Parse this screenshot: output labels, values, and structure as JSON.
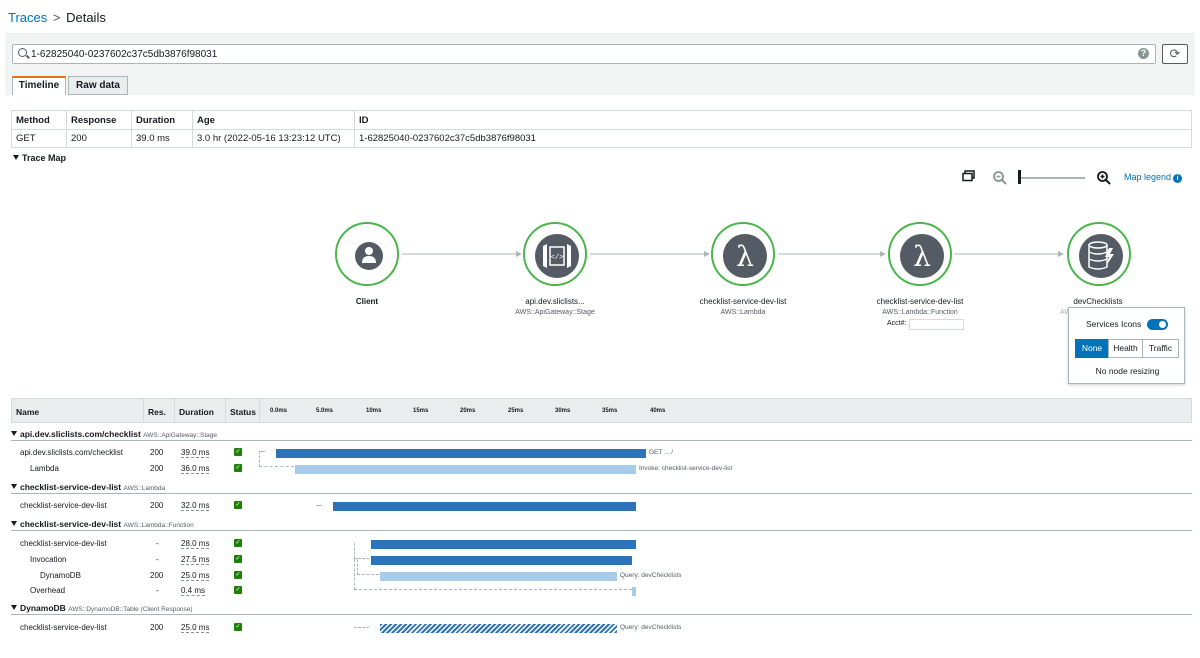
{
  "breadcrumb": {
    "root": "Traces",
    "sep": ">",
    "current": "Details"
  },
  "search": {
    "value": "1-62825040-0237602c37c5db3876f98031",
    "help": "?"
  },
  "tabs": {
    "timeline": "Timeline",
    "raw": "Raw data"
  },
  "summary": {
    "headers": [
      "Method",
      "Response",
      "Duration",
      "Age",
      "ID"
    ],
    "values": [
      "GET",
      "200",
      "39.0 ms",
      "3.0 hr (2022-05-16 13:23:12 UTC)",
      "1-62825040-0237602c37c5db3876f98031"
    ]
  },
  "trace_map": {
    "title": "Trace Map",
    "legend_link": "Map legend",
    "nodes": [
      {
        "name": "Client",
        "type": ""
      },
      {
        "name": "api.dev.sliclists...",
        "type": "AWS::ApiGateway::Stage"
      },
      {
        "name": "checklist-service-dev-list",
        "type": "AWS::Lambda"
      },
      {
        "name": "checklist-service-dev-list",
        "type": "AWS::Lambda::Function",
        "extra": "Acct#:"
      },
      {
        "name": "devChecklists",
        "type": "AWS::DynamoDB::Table"
      }
    ],
    "popup": {
      "services_icons": "Services Icons",
      "modes": [
        "None",
        "Health",
        "Traffic"
      ],
      "selected": "None",
      "resizing": "No node resizing"
    }
  },
  "timeline": {
    "headers": {
      "name": "Name",
      "res": "Res.",
      "duration": "Duration",
      "status": "Status"
    },
    "ticks": [
      "0.0ms",
      "5.0ms",
      "10ms",
      "15ms",
      "20ms",
      "25ms",
      "30ms",
      "35ms",
      "40ms"
    ],
    "groups": [
      {
        "name": "api.dev.sliclists.com/checklist",
        "type": "AWS::ApiGateway::Stage",
        "rows": [
          {
            "name": "api.dev.sliclists.com/checklist",
            "res": "200",
            "dur": "39.0 ms",
            "label": "GET ... /"
          },
          {
            "name": "Lambda",
            "res": "200",
            "dur": "36.0 ms",
            "label": "Invoke: checklist-service-dev-list"
          }
        ]
      },
      {
        "name": "checklist-service-dev-list",
        "type": "AWS::Lambda",
        "rows": [
          {
            "name": "checklist-service-dev-list",
            "res": "200",
            "dur": "32.0 ms",
            "label": ""
          }
        ]
      },
      {
        "name": "checklist-service-dev-list",
        "type": "AWS::Lambda::Function",
        "rows": [
          {
            "name": "checklist-service-dev-list",
            "res": "-",
            "dur": "28.0 ms",
            "label": ""
          },
          {
            "name": "Invocation",
            "res": "-",
            "dur": "27.5 ms",
            "label": ""
          },
          {
            "name": "DynamoDB",
            "res": "200",
            "dur": "25.0 ms",
            "label": "Query: devChecklists"
          },
          {
            "name": "Overhead",
            "res": "-",
            "dur": "0.4 ms",
            "label": ""
          }
        ]
      },
      {
        "name": "DynamoDB",
        "type": "AWS::DynamoDB::Table (Client Response)",
        "rows": [
          {
            "name": "checklist-service-dev-list",
            "res": "200",
            "dur": "25.0 ms",
            "label": "Query: devChecklists"
          }
        ]
      }
    ]
  },
  "colors": {
    "accent": "#0073bb",
    "tab_active": "#ec7211",
    "healthy": "#4ab54a",
    "bar_dark": "#2e73b8",
    "bar_light": "#a9cbea",
    "status_ok": "#1d8102"
  }
}
